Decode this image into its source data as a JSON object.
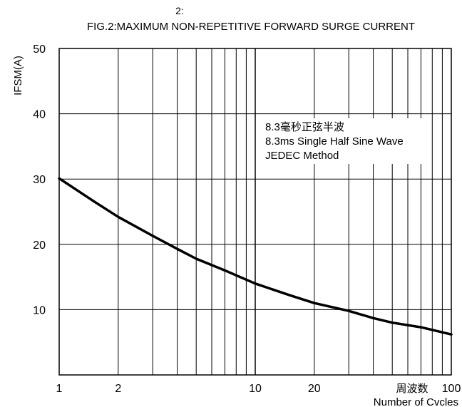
{
  "chart_data": {
    "type": "line",
    "figure_number": "2:",
    "title": "FIG.2:MAXIMUM NON-REPETITIVE FORWARD SURGE CURRENT",
    "ylabel": "IFSM(A)",
    "xlabel_cn": "周波数",
    "xlabel": "Number of Cvcles",
    "xscale": "log",
    "xlim": [
      1,
      100
    ],
    "ylim": [
      0,
      50
    ],
    "x_ticks": [
      1,
      2,
      10,
      20,
      100
    ],
    "y_ticks": [
      10,
      20,
      30,
      40,
      50
    ],
    "grid": true,
    "annotation": [
      "8.3毫秒正弦半波",
      "8.3ms Single Half Sine Wave",
      "JEDEC Method"
    ],
    "series": [
      {
        "x": [
          1,
          1.5,
          2,
          3,
          4,
          5,
          7,
          10,
          15,
          20,
          30,
          40,
          50,
          70,
          100
        ],
        "y": [
          30.1,
          26.6,
          24.2,
          21.3,
          19.3,
          17.8,
          16.0,
          14.0,
          12.2,
          11.0,
          9.8,
          8.7,
          8.0,
          7.3,
          6.2
        ]
      }
    ]
  }
}
